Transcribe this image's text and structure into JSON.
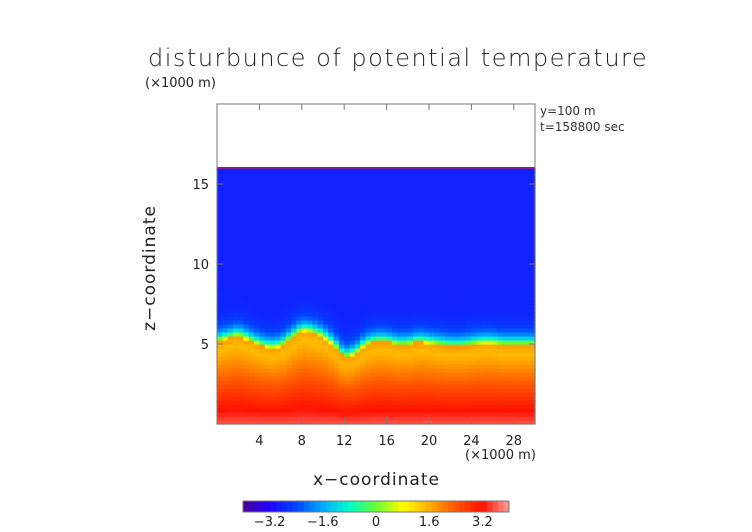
{
  "chart_data": {
    "type": "heatmap",
    "title": "disturbunce of potential temperature",
    "axis_unit": "(×1000 m)",
    "info_lines": [
      "y=100  m",
      "t=158800 sec"
    ],
    "xlabel": "x−coordinate",
    "ylabel": "z−coordinate",
    "xlim": [
      0,
      30
    ],
    "ylim": [
      0,
      20
    ],
    "xticks": [
      4,
      8,
      12,
      16,
      20,
      24,
      28
    ],
    "xtick_labels": [
      "4",
      "8",
      "12",
      "16",
      "20",
      "24",
      "28"
    ],
    "yticks": [
      5,
      10,
      15
    ],
    "ytick_labels": [
      "5",
      "10",
      "15"
    ],
    "colorbar": {
      "range": [
        -4,
        4
      ],
      "ticks": [
        -3.2,
        -1.6,
        0,
        1.6,
        3.2
      ],
      "tick_labels": [
        "−3.2",
        "−1.6",
        "0",
        "1.6",
        "3.2"
      ],
      "colors": [
        "#4b0092",
        "#2200ff",
        "#0044ff",
        "#00aaff",
        "#00ffcc",
        "#66ff33",
        "#ffff00",
        "#ffb000",
        "#ff5500",
        "#ff1100",
        "#ff9f9f"
      ]
    },
    "field": {
      "top_boundary_km": 16,
      "inversion_z_km": [
        5.2,
        5.4,
        5.6,
        5.3,
        5.0,
        4.8,
        4.9,
        5.4,
        5.9,
        5.8,
        5.5,
        5.0,
        4.2,
        4.4,
        5.0,
        5.2,
        5.2,
        5.0,
        5.0,
        5.2,
        5.1,
        5.0,
        4.9,
        4.9,
        5.0,
        5.1,
        5.1,
        5.0,
        5.0,
        5.0,
        5.0
      ],
      "value_above_inversion": -2.8,
      "value_at_surface": 3.6,
      "value_below_inversion": 1.2
    }
  }
}
